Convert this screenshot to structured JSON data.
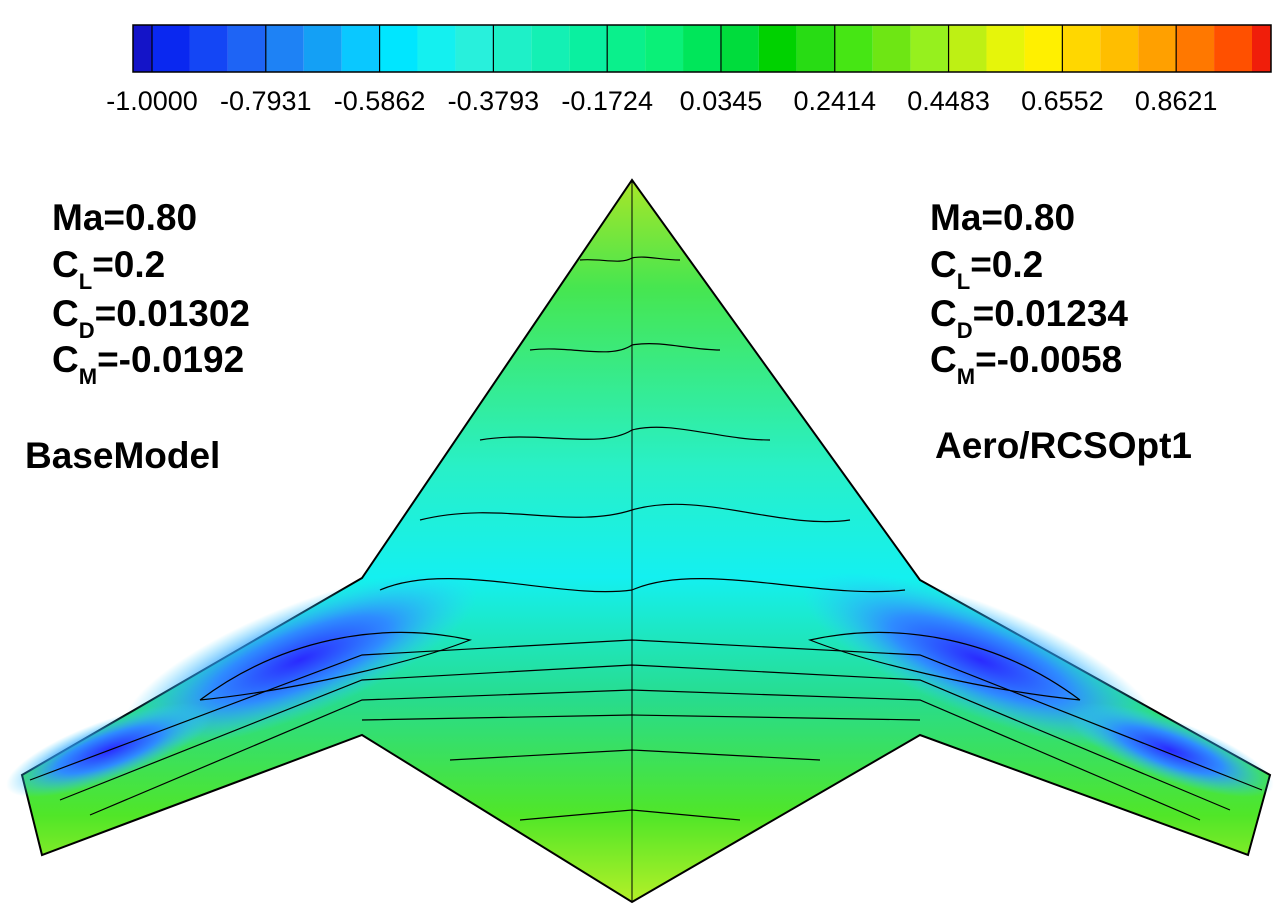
{
  "colorbar": {
    "lim": [
      -1,
      1
    ],
    "ticks": [
      {
        "value": -1,
        "label": "-1.0000"
      },
      {
        "value": -0.7931,
        "label": "-0.7931"
      },
      {
        "value": -0.5862,
        "label": "-0.5862"
      },
      {
        "value": -0.3793,
        "label": "-0.3793"
      },
      {
        "value": -0.1724,
        "label": "-0.1724"
      },
      {
        "value": 0.0345,
        "label": "0.0345"
      },
      {
        "value": 0.2414,
        "label": "0.2414"
      },
      {
        "value": 0.4483,
        "label": "0.4483"
      },
      {
        "value": 0.6552,
        "label": "0.6552"
      },
      {
        "value": 0.8621,
        "label": "0.8621"
      }
    ],
    "colors": [
      "#1414c8",
      "#0a28f0",
      "#1446f5",
      "#1e64f5",
      "#1e82f5",
      "#14a0f5",
      "#0ac8ff",
      "#00e6ff",
      "#14f0f0",
      "#28f0dc",
      "#1ef0c8",
      "#14f0b4",
      "#0af0a0",
      "#0af08c",
      "#0af078",
      "#00e65a",
      "#00dc3c",
      "#00d200",
      "#28dc14",
      "#46e614",
      "#6ee614",
      "#96f01e",
      "#bef014",
      "#e6f50a",
      "#fff000",
      "#ffd700",
      "#ffbe00",
      "#ffa000",
      "#ff7800",
      "#ff5000",
      "#f01e0a"
    ]
  },
  "left": {
    "mach": "Ma=0.80",
    "cl": {
      "symbol": "C",
      "subscript": "L",
      "value": "=0.2"
    },
    "cd": {
      "symbol": "C",
      "subscript": "D",
      "value": "=0.01302"
    },
    "cm": {
      "symbol": "C",
      "subscript": "M",
      "value": "=-0.0192"
    },
    "model": "BaseModel"
  },
  "right": {
    "mach": "Ma=0.80",
    "cl": {
      "symbol": "C",
      "subscript": "L",
      "value": "=0.2"
    },
    "cd": {
      "symbol": "C",
      "subscript": "D",
      "value": "=0.01234"
    },
    "cm": {
      "symbol": "C",
      "subscript": "M",
      "value": "=-0.0058"
    },
    "model": "Aero/RCSOpt1"
  }
}
